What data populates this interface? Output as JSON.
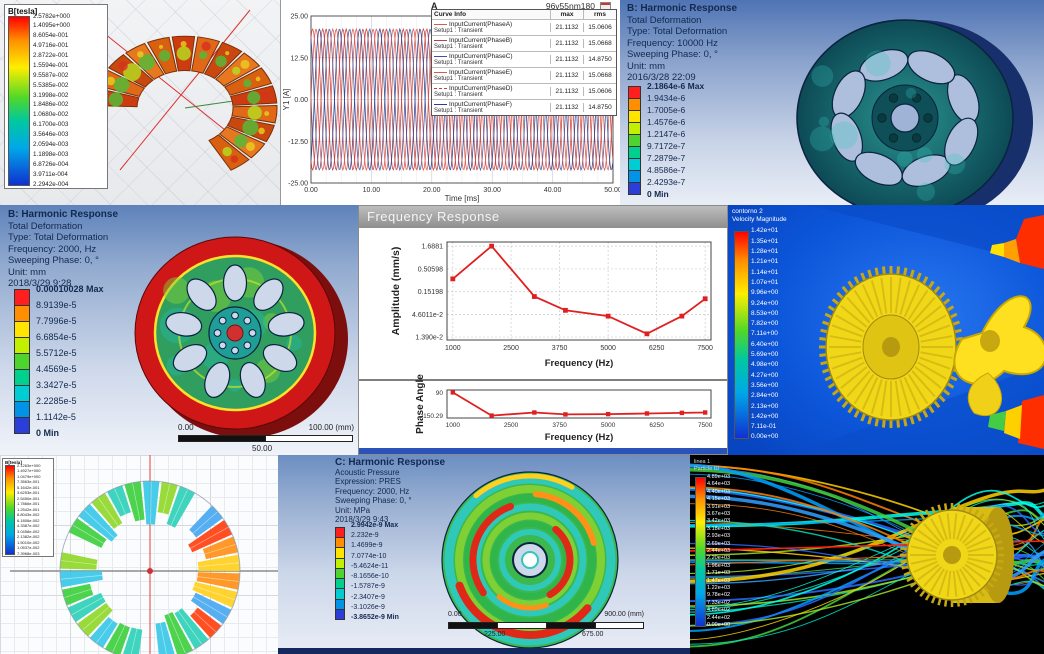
{
  "colors": {
    "ansys_bands": [
      "#ff1f1f",
      "#ff8f00",
      "#ffe400",
      "#c3f000",
      "#4fd32f",
      "#00cf8e",
      "#00cdd3",
      "#0093e6",
      "#2b3fd8"
    ],
    "accent_red": "#e02020",
    "ansys_text": "#13294f",
    "cfd_background": "#0a52d8",
    "gear_yellow": "#f0d818"
  },
  "torus_legend": {
    "title": "B[tesla]",
    "values": [
      "2.5782e+000",
      "1.4095e+000",
      "8.6054e-001",
      "4.9716e-001",
      "2.8722e-001",
      "1.5594e-001",
      "9.5587e-002",
      "5.5385e-002",
      "3.1998e-002",
      "1.8486e-002",
      "1.0680e-002",
      "6.1700e-003",
      "3.5646e-003",
      "2.0594e-003",
      "1.1898e-003",
      "6.8726e-004",
      "3.9711e-004",
      "2.2942e-004"
    ]
  },
  "ring_legend": {
    "title": "B[tesla]",
    "values": [
      "2.1263e+000",
      "1.4927e+000",
      "1.0479e+000",
      "7.3563e-001",
      "5.1642e-001",
      "3.6253e-001",
      "2.5450e-001",
      "1.7866e-001",
      "1.2542e-001",
      "8.8043e-002",
      "6.1806e-002",
      "4.3387e-002",
      "3.0458e-002",
      "2.1382e-002",
      "1.5010e-002",
      "1.0537e-002",
      "7.3968e-003"
    ]
  },
  "harmonic_top": {
    "lines": [
      "B: Harmonic Response",
      "Total Deformation",
      "Type: Total Deformation",
      "Frequency: 10000 Hz",
      "Sweeping Phase: 0, °",
      "Unit: mm",
      "2016/3/28 22:09"
    ],
    "colorbar": [
      "2.1864e-6 Max",
      "1.9434e-6",
      "1.7005e-6",
      "1.4576e-6",
      "1.2147e-6",
      "9.7172e-7",
      "7.2879e-7",
      "4.8586e-7",
      "2.4293e-7",
      "0 Min"
    ]
  },
  "harmonic_mid": {
    "lines": [
      "B: Harmonic Response",
      "Total Deformation",
      "Type: Total Deformation",
      "Frequency: 2000, Hz",
      "Sweeping Phase: 0, °",
      "Unit: mm",
      "2018/3/29 9:28"
    ],
    "colorbar": [
      "0.00010028 Max",
      "8.9139e-5",
      "7.7996e-5",
      "6.6854e-5",
      "5.5712e-5",
      "4.4569e-5",
      "3.3427e-5",
      "2.2285e-5",
      "1.1142e-5",
      "0 Min"
    ],
    "scale": {
      "left": "0.00",
      "right": "100.00 (mm)",
      "center": "50.00"
    }
  },
  "acoustic": {
    "lines": [
      "C: Harmonic Response",
      "Acoustic Pressure",
      "Expression: PRES",
      "Frequency: 2000, Hz",
      "Sweeping Phase: 0, °",
      "Unit: MPa",
      "2018/3/29 9:43"
    ],
    "colorbar": [
      "2.9942e-9 Max",
      "2.232e-9",
      "1.4699e-9",
      "7.0774e-10",
      "-5.4624e-11",
      "-8.1656e-10",
      "-1.5787e-9",
      "-2.3407e-9",
      "-3.1026e-9",
      "-3.8652e-9 Min"
    ],
    "scale": {
      "left": "0.00",
      "right": "900.00 (mm)",
      "q1": "225.00",
      "q3": "675.00"
    }
  },
  "freq_window": {
    "title": "Frequency Response",
    "xlabel": "Frequency (Hz)",
    "amp_ylabel": "Amplitude (mm/s)",
    "phase_ylabel": "Phase Angle"
  },
  "velocity_legend": {
    "title_lines": [
      "contorno 2",
      "Velocity Magnitude"
    ],
    "values": [
      "1.42e+01",
      "1.35e+01",
      "1.28e+01",
      "1.21e+01",
      "1.14e+01",
      "1.07e+01",
      "9.96e+00",
      "9.24e+00",
      "8.53e+00",
      "7.82e+00",
      "7.11e+00",
      "6.40e+00",
      "5.69e+00",
      "4.98e+00",
      "4.27e+00",
      "3.56e+00",
      "2.84e+00",
      "2.13e+00",
      "1.42e+00",
      "7.11e-01",
      "0.00e+00"
    ]
  },
  "particle_legend": {
    "title_lines": [
      "linea 1",
      "Particle ID"
    ],
    "values": [
      "4.89e+03",
      "4.64e+03",
      "4.40e+03",
      "4.15e+03",
      "3.91e+03",
      "3.67e+03",
      "3.42e+03",
      "3.18e+03",
      "2.93e+03",
      "2.69e+03",
      "2.44e+03",
      "2.20e+03",
      "1.96e+03",
      "1.71e+03",
      "1.47e+03",
      "1.22e+03",
      "9.78e+02",
      "7.33e+02",
      "4.89e+02",
      "2.44e+02",
      "0.00e+00"
    ]
  },
  "chart_data": [
    {
      "id": "input_current",
      "type": "line",
      "title": "A",
      "window_label": "96v55nm180",
      "xlabel": "Time [ms]",
      "ylabel": "Y1 [A]",
      "xlim": [
        0,
        50
      ],
      "ylim": [
        -25,
        25
      ],
      "xticks": [
        0,
        10,
        20,
        30,
        40,
        50
      ],
      "xtick_labels": [
        "0.00",
        "10.00",
        "20.00",
        "30.00",
        "40.00",
        "50.00"
      ],
      "ytick_labels": [
        "25.00",
        "12.50",
        "0.00",
        "-12.50",
        "-25.00"
      ],
      "amplitude": 21.1132,
      "period_ms": 3.333,
      "legend_headers": {
        "info": "Curve Info",
        "max": "max",
        "rms": "rms"
      },
      "series": [
        {
          "name": "InputCurrent(PhaseA)",
          "setup": "Setup1 : Transient",
          "max": "21.1132",
          "rms": "15.0606",
          "color": "#d85850",
          "phase_deg": 0,
          "dash": false
        },
        {
          "name": "InputCurrent(PhaseB)",
          "setup": "Setup1 : Transient",
          "max": "21.1132",
          "rms": "15.0668",
          "color": "#c04040",
          "phase_deg": -120,
          "dash": false
        },
        {
          "name": "InputCurrent(PhaseC)",
          "setup": "Setup1 : Transient",
          "max": "21.1132",
          "rms": "14.8750",
          "color": "#3a55a0",
          "phase_deg": -240,
          "dash": false
        },
        {
          "name": "InputCurrent(PhaseE)",
          "setup": "Setup1 : Transient",
          "max": "21.1132",
          "rms": "15.0668",
          "color": "#d85850",
          "phase_deg": -300,
          "dash": false
        },
        {
          "name": "InputCurrent(PhaseD)",
          "setup": "Setup1 : Transient",
          "max": "21.1132",
          "rms": "15.0606",
          "color": "#c04040",
          "phase_deg": -180,
          "dash": true
        },
        {
          "name": "InputCurrent(PhaseF)",
          "setup": "Setup1 : Transient",
          "max": "21.1132",
          "rms": "14.8750",
          "color": "#27408c",
          "phase_deg": -60,
          "dash": false
        }
      ]
    },
    {
      "id": "freq_amplitude",
      "type": "line",
      "ylabel": "Amplitude (mm/s)",
      "xlabel": "Frequency (Hz)",
      "yscale": "log",
      "x": [
        1000,
        2000,
        3100,
        3900,
        5000,
        6000,
        6900,
        7500
      ],
      "y": [
        0.3,
        1.6881,
        0.118,
        0.057,
        0.042,
        0.0165,
        0.042,
        0.105
      ],
      "xticks": [
        1000,
        2500,
        3750,
        5000,
        6250,
        7500
      ],
      "ytick_values": [
        1.6881,
        0.50598,
        0.15198,
        0.046011,
        0.0139
      ],
      "ytick_labels": [
        "1.6881",
        "0.50598",
        "0.15198",
        "4.6011e-2",
        "1.390e-2"
      ],
      "color": "#e02020"
    },
    {
      "id": "freq_phase",
      "type": "line",
      "ylabel": "Phase Angle",
      "xlabel": "Frequency (Hz)",
      "x": [
        1000,
        2000,
        3100,
        3900,
        5000,
        6000,
        6900,
        7500
      ],
      "y": [
        90,
        -150.29,
        -118,
        -138,
        -135,
        -128,
        -122,
        -118
      ],
      "xticks": [
        1000,
        2500,
        3750,
        5000,
        6250,
        7500
      ],
      "ytick_values": [
        90,
        -150.29
      ],
      "ytick_labels": [
        "90",
        "-150.29"
      ],
      "ylim": [
        -175,
        115
      ],
      "color": "#e02020"
    }
  ]
}
